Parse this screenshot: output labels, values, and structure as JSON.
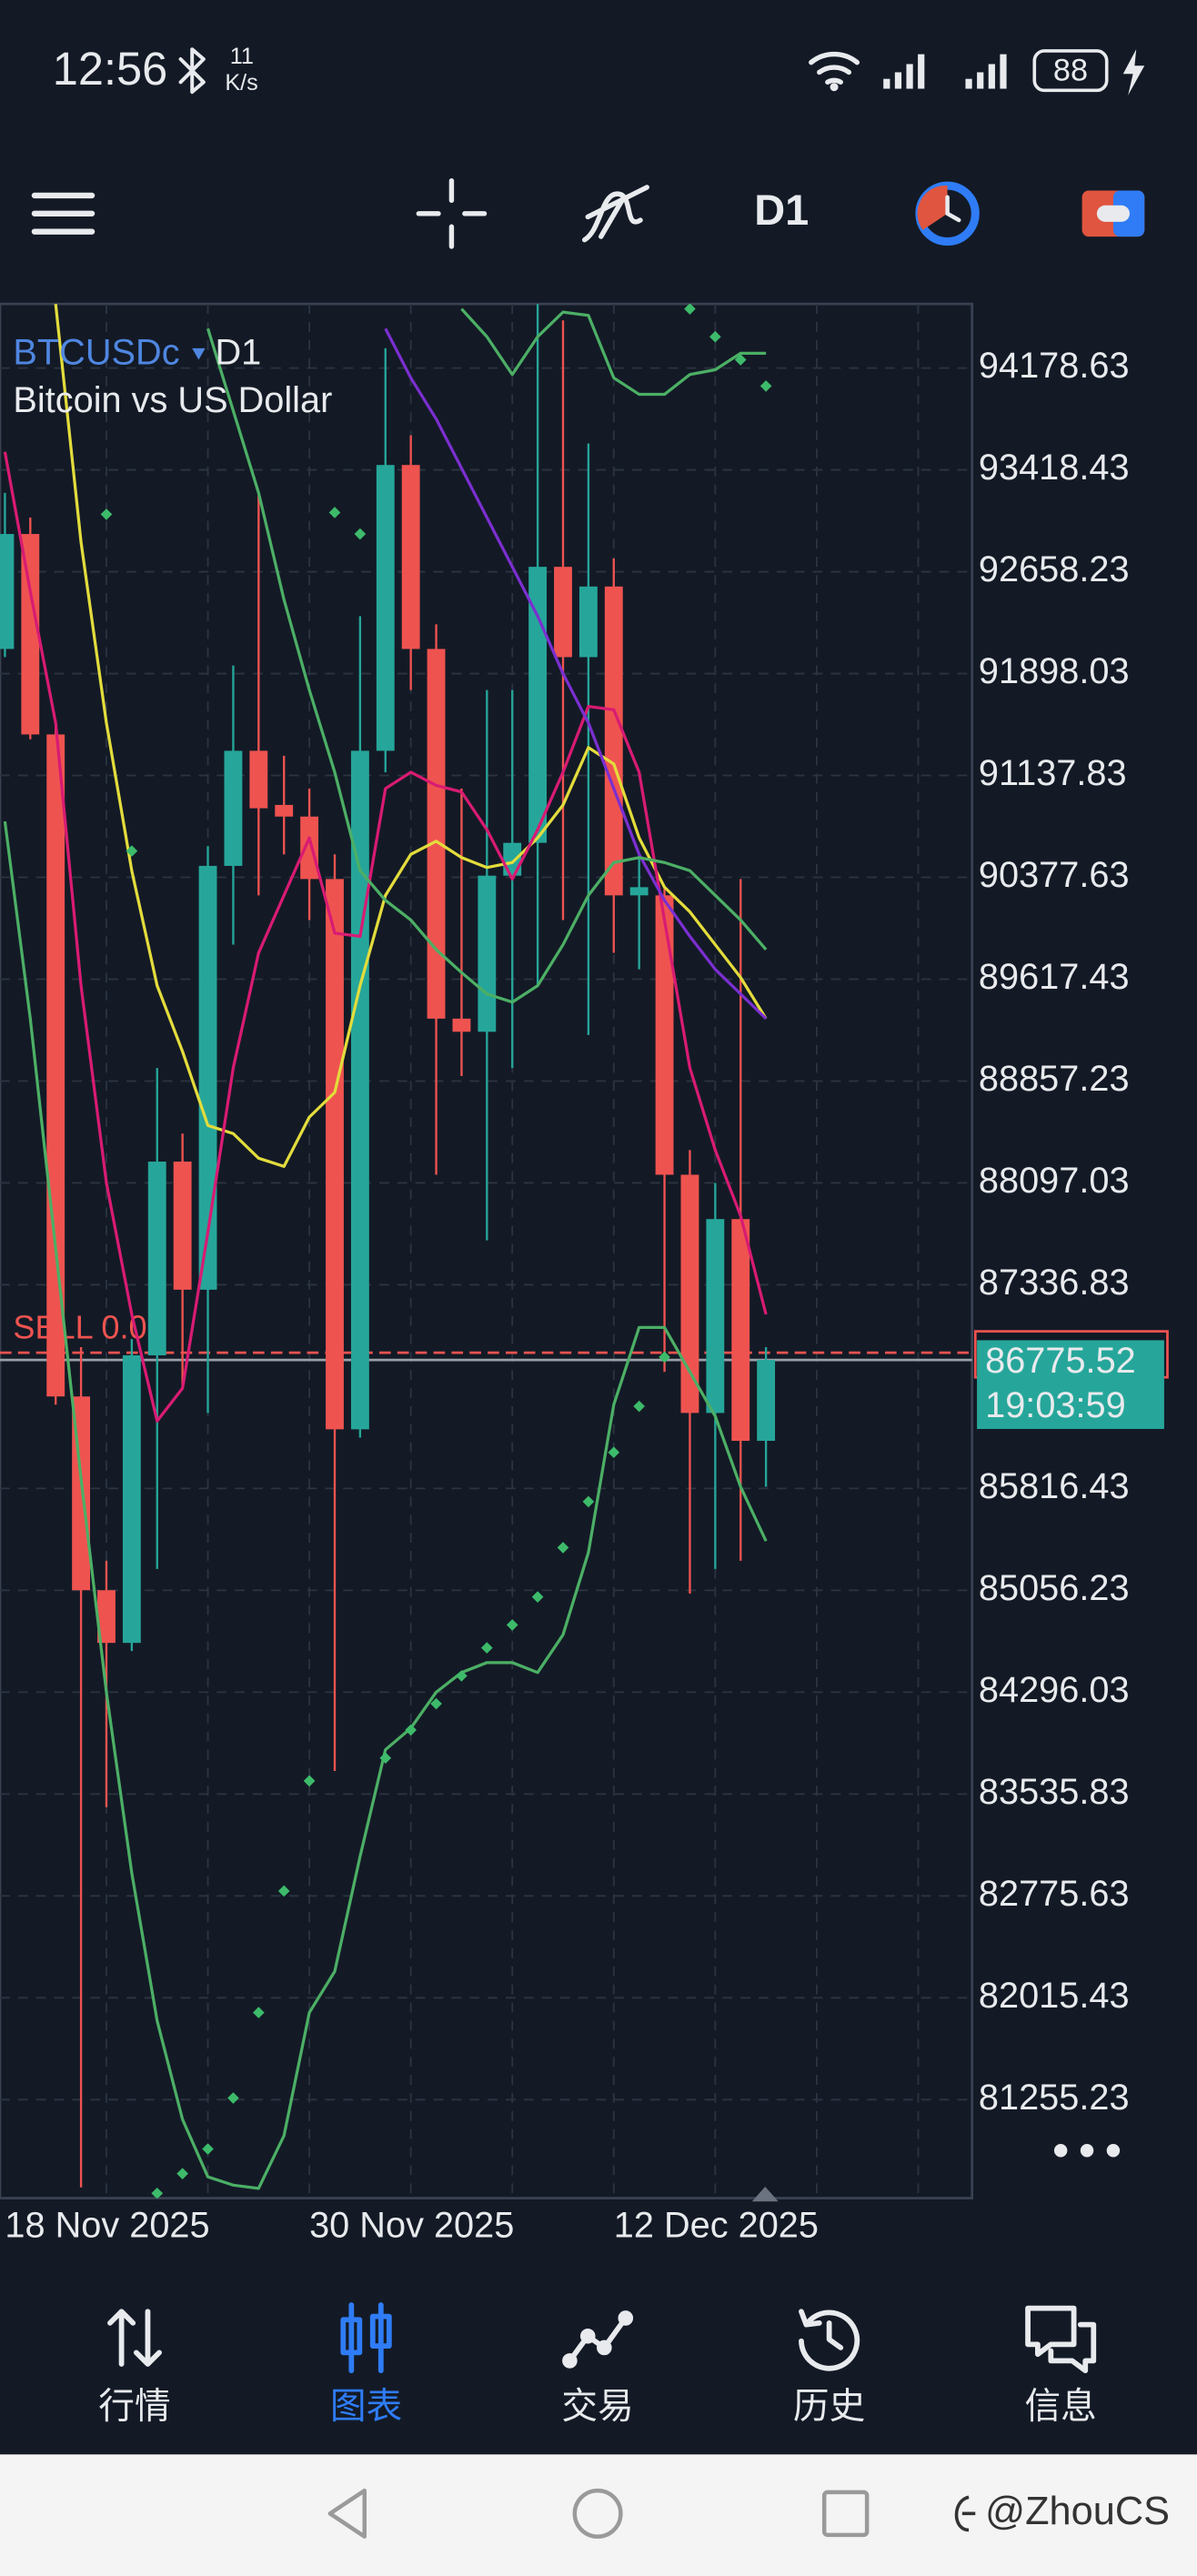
{
  "status_bar": {
    "time": "12:56",
    "net_speed": "11",
    "net_unit": "K/s",
    "battery": "88"
  },
  "toolbar": {
    "timeframe": "D1"
  },
  "chart_data": {
    "type": "candlestick",
    "symbol": "BTCUSDc",
    "timeframe": "D1",
    "description": "Bitcoin vs US Dollar",
    "categories": [
      "18 Nov 2025",
      null,
      null,
      null,
      null,
      null,
      null,
      null,
      null,
      null,
      null,
      null,
      "30 Nov 2025",
      null,
      null,
      null,
      null,
      null,
      null,
      null,
      null,
      null,
      null,
      null,
      "12 Dec 2025",
      null,
      null,
      null,
      null,
      null,
      null
    ],
    "open": [
      92082,
      92940,
      91444,
      86503,
      85057,
      84664,
      86810,
      88256,
      87300,
      90463,
      91322,
      90918,
      90831,
      90365,
      86258,
      91322,
      93455,
      92082,
      89323,
      89225,
      90390,
      90635,
      92695,
      92021,
      92548,
      90243,
      90243,
      88158,
      86380,
      87827,
      86172
    ],
    "high": [
      93247,
      93063,
      91530,
      86871,
      85277,
      86932,
      88955,
      88465,
      90610,
      91959,
      93247,
      91285,
      91040,
      90549,
      92327,
      94326,
      93676,
      92266,
      91040,
      91775,
      91775,
      94657,
      94534,
      93615,
      92757,
      90549,
      90304,
      88342,
      88097,
      90365,
      86871
    ],
    "low": [
      92021,
      91408,
      86442,
      80600,
      83438,
      84603,
      85216,
      86564,
      86380,
      89875,
      90243,
      90549,
      90059,
      83708,
      86196,
      91162,
      91775,
      88158,
      88894,
      87668,
      88955,
      89569,
      90059,
      89201,
      89814,
      89691,
      86687,
      85032,
      85216,
      85277,
      85829
    ],
    "close": [
      92940,
      91444,
      86503,
      85057,
      84664,
      86810,
      88256,
      87300,
      90463,
      91322,
      90893,
      90831,
      90365,
      86258,
      91322,
      93455,
      92082,
      89323,
      89225,
      90390,
      90635,
      92695,
      92021,
      92548,
      90243,
      90304,
      88158,
      86380,
      87827,
      86172,
      86775.52
    ],
    "up_color": "#26a69a",
    "down_color": "#ef5350",
    "overlays": [
      {
        "color": "#e3dc3c",
        "values": [
          null,
          null,
          94657,
          92879,
          91530,
          90427,
          89569,
          89078,
          88526,
          88465,
          88281,
          88220,
          88588,
          88772,
          89569,
          90243,
          90549,
          90647,
          90525,
          90451,
          90488,
          90672,
          90917,
          91346,
          91224,
          90672,
          90304,
          90120,
          89875,
          89630,
          89323
        ]
      },
      {
        "color": "#d81b73",
        "values": [
          93553,
          92511,
          91530,
          89569,
          88098,
          87116,
          86320,
          86564,
          87729,
          88955,
          89814,
          90243,
          90672,
          89961,
          89937,
          91040,
          91162,
          91064,
          91015,
          90733,
          90365,
          90733,
          91162,
          91653,
          91628,
          91162,
          90059,
          88955,
          88342,
          87852,
          87116
        ]
      },
      {
        "color": "#7b2fd0",
        "values": [
          null,
          null,
          null,
          null,
          null,
          null,
          null,
          null,
          null,
          null,
          null,
          null,
          null,
          null,
          null,
          94473,
          94105,
          93798,
          93431,
          93063,
          92695,
          92327,
          91898,
          91530,
          91040,
          90549,
          90206,
          89937,
          89691,
          89507,
          89323
        ]
      },
      {
        "color": "#4caf65",
        "values": [
          null,
          null,
          null,
          null,
          null,
          null,
          null,
          null,
          null,
          null,
          null,
          null,
          null,
          null,
          null,
          null,
          null,
          null,
          94620,
          94412,
          94130,
          94412,
          94596,
          94571,
          94105,
          93982,
          93982,
          94130,
          94166,
          94289,
          94289
        ]
      },
      {
        "color": "#4caf65",
        "values": [
          null,
          null,
          null,
          null,
          null,
          null,
          null,
          null,
          94473,
          93860,
          93247,
          92450,
          91775,
          91162,
          90427,
          90206,
          90059,
          89838,
          89667,
          89507,
          89446,
          89569,
          89875,
          90243,
          90488,
          90525,
          90488,
          90427,
          90243,
          90059,
          89838
        ]
      },
      {
        "color": "#4caf65",
        "values": [
          90795,
          89323,
          87607,
          85890,
          84296,
          82947,
          81844,
          81108,
          80679,
          80617,
          80593,
          80986,
          81905,
          82212,
          83070,
          83867,
          84027,
          84296,
          84443,
          84517,
          84517,
          84443,
          84725,
          85339,
          86442,
          87018,
          87018,
          86687,
          86356,
          85829,
          85424
        ]
      }
    ],
    "sar": {
      "color": "#3dbb6a",
      "values": [
        null,
        null,
        null,
        null,
        93087,
        90574,
        80556,
        80703,
        80887,
        81267,
        81905,
        82812,
        83634,
        93100,
        92940,
        83805,
        84014,
        84210,
        84418,
        84627,
        84798,
        85007,
        85375,
        85718,
        86086,
        86430,
        86797,
        94620,
        94412,
        94240,
        94044
      ]
    },
    "ylim": [
      80520,
      94657
    ],
    "yticks": [
      94178.63,
      93418.43,
      92658.23,
      91898.03,
      91137.83,
      90377.63,
      89617.43,
      88857.23,
      88097.03,
      87336.83,
      85816.43,
      85056.23,
      84296.03,
      83535.83,
      82775.63,
      82015.43,
      81255.23
    ],
    "grid": true,
    "order": {
      "label": "SELL 0.05",
      "price": 86830,
      "color": "#ef5350"
    },
    "countdown": "19:03:59"
  },
  "nav": {
    "items": [
      "行情",
      "图表",
      "交易",
      "历史",
      "信息"
    ],
    "active": 1
  },
  "watermark": "@ZhouCS"
}
